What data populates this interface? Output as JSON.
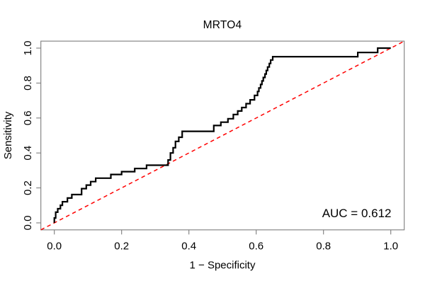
{
  "chart_data": {
    "type": "line",
    "subtype": "roc-step-curve",
    "title": "MRTO4",
    "xlabel": "1 − Specificity",
    "ylabel": "Sensitivity",
    "xlim": [
      0,
      1
    ],
    "ylim": [
      0,
      1
    ],
    "x_ticks": [
      0.0,
      0.2,
      0.4,
      0.6,
      0.8,
      1.0
    ],
    "y_ticks": [
      0.0,
      0.2,
      0.4,
      0.6,
      0.8,
      1.0
    ],
    "grid": false,
    "legend": "none",
    "annotation": "AUC = 0.612",
    "auc": 0.612,
    "series": [
      {
        "name": "ROC curve",
        "style": "step",
        "color": "#000000",
        "points": [
          [
            0.0,
            0.0
          ],
          [
            0.0,
            0.028
          ],
          [
            0.004,
            0.061
          ],
          [
            0.01,
            0.081
          ],
          [
            0.018,
            0.101
          ],
          [
            0.024,
            0.121
          ],
          [
            0.039,
            0.142
          ],
          [
            0.052,
            0.162
          ],
          [
            0.081,
            0.196
          ],
          [
            0.095,
            0.216
          ],
          [
            0.108,
            0.236
          ],
          [
            0.123,
            0.256
          ],
          [
            0.168,
            0.277
          ],
          [
            0.2,
            0.293
          ],
          [
            0.239,
            0.311
          ],
          [
            0.274,
            0.33
          ],
          [
            0.338,
            0.36
          ],
          [
            0.345,
            0.4
          ],
          [
            0.353,
            0.43
          ],
          [
            0.36,
            0.466
          ],
          [
            0.37,
            0.49
          ],
          [
            0.38,
            0.524
          ],
          [
            0.474,
            0.557
          ],
          [
            0.495,
            0.576
          ],
          [
            0.516,
            0.596
          ],
          [
            0.532,
            0.62
          ],
          [
            0.545,
            0.64
          ],
          [
            0.557,
            0.66
          ],
          [
            0.57,
            0.682
          ],
          [
            0.582,
            0.704
          ],
          [
            0.595,
            0.729
          ],
          [
            0.604,
            0.752
          ],
          [
            0.608,
            0.772
          ],
          [
            0.613,
            0.792
          ],
          [
            0.617,
            0.812
          ],
          [
            0.621,
            0.832
          ],
          [
            0.626,
            0.852
          ],
          [
            0.63,
            0.872
          ],
          [
            0.634,
            0.892
          ],
          [
            0.639,
            0.912
          ],
          [
            0.643,
            0.932
          ],
          [
            0.649,
            0.951
          ],
          [
            0.902,
            0.975
          ],
          [
            0.961,
            1.0
          ],
          [
            1.0,
            1.0
          ]
        ]
      },
      {
        "name": "chance diagonal",
        "style": "dashed",
        "color": "#FF0000",
        "points": [
          [
            0,
            0
          ],
          [
            1,
            1
          ]
        ]
      }
    ]
  },
  "colors": {
    "background": "#FFFFFF",
    "curve": "#000000",
    "diagonal": "#FF0000",
    "frame": "#7d7d7d",
    "text": "#000000"
  }
}
